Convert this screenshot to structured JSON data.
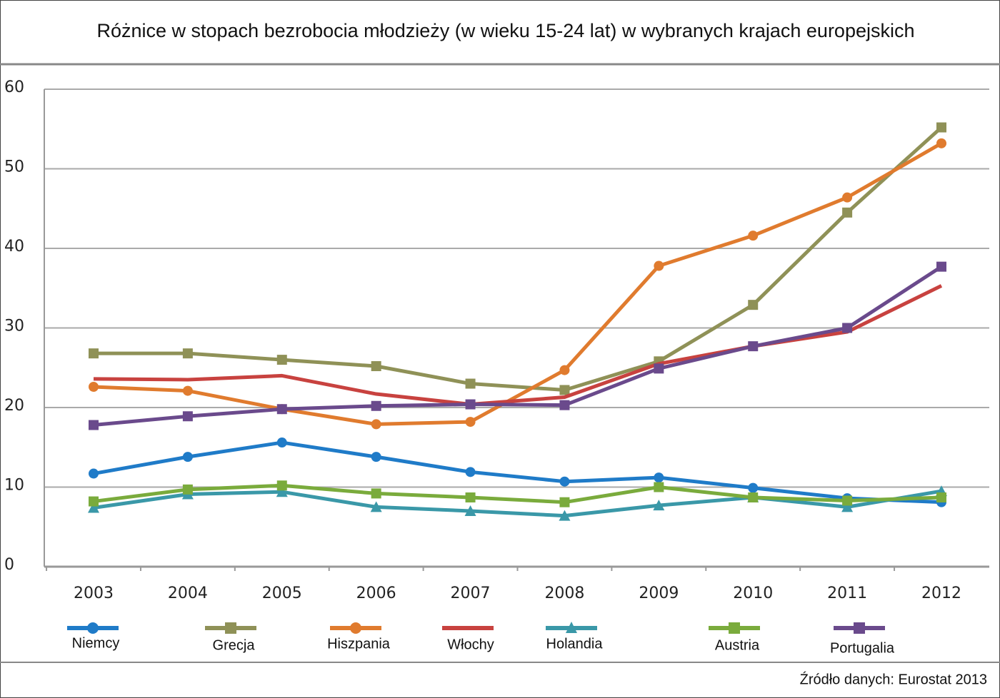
{
  "chart_data": {
    "type": "line",
    "title": "Różnice w stopach bezrobocia młodzieży (w wieku 15-24 lat) w wybranych krajach europejskich",
    "source": "Źródło danych: Eurostat 2013",
    "categories": [
      "2003",
      "2004",
      "2005",
      "2006",
      "2007",
      "2008",
      "2009",
      "2010",
      "2011",
      "2012"
    ],
    "ylim": [
      0,
      60
    ],
    "yticks": [
      0,
      10,
      20,
      30,
      40,
      50,
      60
    ],
    "grid": true,
    "series": [
      {
        "name": "Niemcy",
        "color": "#1f7bc8",
        "marker": "circle",
        "values": [
          11.7,
          13.8,
          15.6,
          13.8,
          11.9,
          10.7,
          11.2,
          9.9,
          8.6,
          8.1
        ]
      },
      {
        "name": "Grecja",
        "color": "#8f9157",
        "marker": "square",
        "values": [
          26.8,
          26.8,
          26.0,
          25.2,
          23.0,
          22.2,
          25.8,
          32.9,
          44.5,
          55.2
        ]
      },
      {
        "name": "Hiszpania",
        "color": "#e07b2e",
        "marker": "circle",
        "values": [
          22.6,
          22.1,
          19.8,
          17.9,
          18.2,
          24.7,
          37.8,
          41.6,
          46.4,
          53.2
        ]
      },
      {
        "name": "Włochy",
        "color": "#c8423f",
        "marker": "none",
        "values": [
          23.6,
          23.5,
          24.0,
          21.7,
          20.4,
          21.3,
          25.5,
          27.7,
          29.5,
          35.3
        ]
      },
      {
        "name": "Holandia",
        "color": "#3a98a8",
        "marker": "triangle",
        "values": [
          7.4,
          9.1,
          9.4,
          7.5,
          7.0,
          6.4,
          7.7,
          8.7,
          7.5,
          9.5
        ]
      },
      {
        "name": "Austria",
        "color": "#7aab3c",
        "marker": "square",
        "values": [
          8.2,
          9.7,
          10.2,
          9.2,
          8.7,
          8.1,
          10.0,
          8.7,
          8.3,
          8.7
        ]
      },
      {
        "name": "Portugalia",
        "color": "#6a4a8c",
        "marker": "square",
        "values": [
          17.8,
          18.9,
          19.8,
          20.2,
          20.4,
          20.3,
          24.9,
          27.7,
          30.0,
          37.7
        ]
      }
    ]
  }
}
